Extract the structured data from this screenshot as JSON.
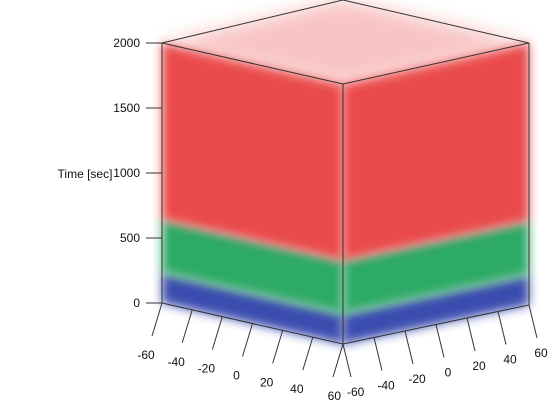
{
  "chart_data": {
    "type": "3d-volume",
    "ylabel": "Time [sec]",
    "z_ticks": [
      "0",
      "500",
      "1000",
      "1500",
      "2000"
    ],
    "zlim": [
      0,
      2000
    ],
    "x_ticks": [
      "-60",
      "-40",
      "-20",
      "0",
      "20",
      "40",
      "60"
    ],
    "y_ticks": [
      "-60",
      "-40",
      "-20",
      "0",
      "20",
      "40",
      "60"
    ],
    "xlim": [
      -60,
      60
    ],
    "ylim": [
      -60,
      60
    ],
    "layers": [
      {
        "color": "#2b3ea8",
        "z_range": [
          0,
          230
        ]
      },
      {
        "color": "#1fa35a",
        "z_range": [
          230,
          640
        ]
      },
      {
        "color": "#e83a3a",
        "z_range": [
          640,
          2000
        ]
      }
    ]
  }
}
